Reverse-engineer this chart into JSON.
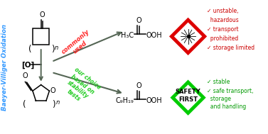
{
  "bg_color": "#ffffff",
  "title_text": "Baeyer-Villiger Oxidation",
  "title_color": "#3399ff",
  "commonly_used_color": "#ff2222",
  "our_choice_color": "#22cc22",
  "arrow_color": "#556655",
  "red_bullet_color": "#cc0000",
  "green_bullet_color": "#009900",
  "red_bullets": [
    "unstable,",
    "hazardous",
    "transport",
    "prohibited",
    "storage limited"
  ],
  "red_checkmarks": [
    true,
    false,
    true,
    false,
    true
  ],
  "green_bullets": [
    "stable",
    "safe transport,",
    "storage",
    "and handling"
  ],
  "green_checkmarks": [
    true,
    true,
    false,
    false
  ],
  "safety_first_color": "#00cc00",
  "hazard_border_color": "#dd0000",
  "fig_width": 3.77,
  "fig_height": 1.89
}
